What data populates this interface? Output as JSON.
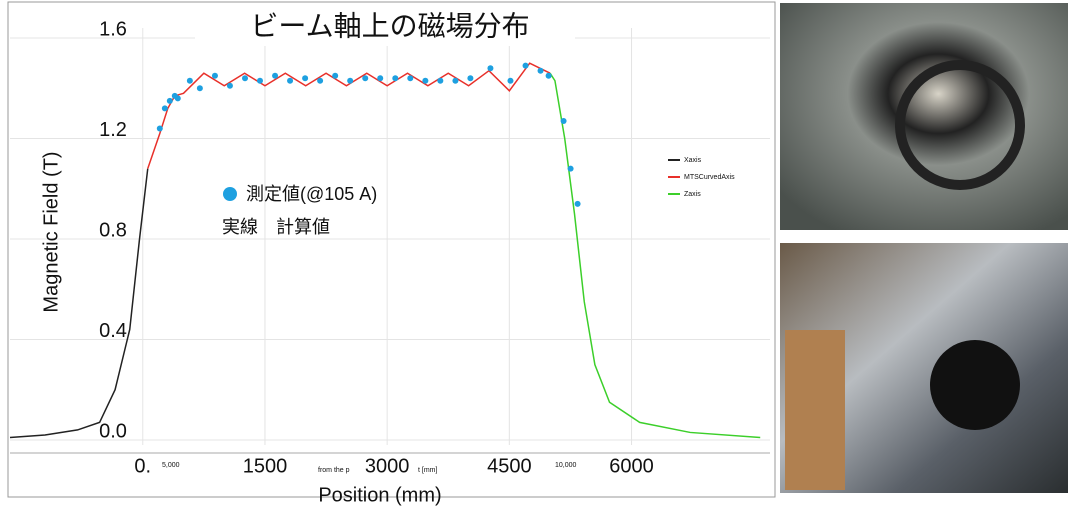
{
  "chart_data": {
    "type": "line",
    "title": "ビーム軸上の磁場分布",
    "x_label": "Position (mm)",
    "y_label": "Magnetic  Field (T)",
    "xlim": [
      -1630,
      7700
    ],
    "ylim": [
      -0.02,
      1.64
    ],
    "xticks": [
      {
        "value": 0,
        "label": "0."
      },
      1500,
      3000,
      4500,
      6000
    ],
    "yticks": [
      {
        "value": 0,
        "label": "0.0"
      },
      0.4,
      0.8,
      1.2,
      1.6
    ],
    "series": [
      {
        "name": "Xaxis",
        "color": "#222222",
        "x": [
          -1630,
          -1200,
          -800,
          -530,
          -340,
          -160,
          -40,
          61
        ],
        "values": [
          0.01,
          0.02,
          0.04,
          0.07,
          0.2,
          0.44,
          0.8,
          1.08
        ]
      },
      {
        "name": "MTSCurvedAxis",
        "color": "#e8302a",
        "x": [
          61,
          209,
          307,
          393,
          500,
          750,
          1000,
          1250,
          1500,
          1750,
          2000,
          2250,
          2500,
          2750,
          3000,
          3250,
          3500,
          3750,
          4000,
          4250,
          4500,
          4750,
          5000
        ],
        "values": [
          1.08,
          1.22,
          1.32,
          1.37,
          1.38,
          1.46,
          1.41,
          1.46,
          1.41,
          1.46,
          1.41,
          1.46,
          1.41,
          1.46,
          1.41,
          1.46,
          1.41,
          1.46,
          1.41,
          1.47,
          1.39,
          1.5,
          1.46
        ]
      },
      {
        "name": "Zaxis",
        "color": "#3ccf2a",
        "x": [
          5000,
          5060,
          5180,
          5300,
          5420,
          5550,
          5730,
          6100,
          6720,
          7580
        ],
        "values": [
          1.46,
          1.43,
          1.2,
          0.9,
          0.55,
          0.3,
          0.15,
          0.07,
          0.03,
          0.01
        ]
      }
    ],
    "measured": {
      "name": "測定値(@105 A)",
      "color": "#1ea0e0",
      "x": [
        209,
        271,
        332,
        393,
        430,
        578,
        701,
        886,
        1070,
        1255,
        1439,
        1624,
        1808,
        1993,
        2177,
        2362,
        2546,
        2731,
        2915,
        3100,
        3284,
        3469,
        3653,
        3838,
        4022,
        4268,
        4514,
        4699,
        4883,
        4982,
        5166,
        5252,
        5338
      ],
      "values": [
        1.24,
        1.32,
        1.35,
        1.37,
        1.36,
        1.43,
        1.4,
        1.45,
        1.41,
        1.44,
        1.43,
        1.45,
        1.43,
        1.44,
        1.43,
        1.45,
        1.43,
        1.44,
        1.44,
        1.44,
        1.44,
        1.43,
        1.43,
        1.43,
        1.44,
        1.48,
        1.43,
        1.49,
        1.47,
        1.45,
        1.27,
        1.08,
        0.94
      ]
    },
    "annotations": [
      "実線　計算値",
      "5,000",
      "10,000",
      "from the p",
      "t [mm]"
    ],
    "grid": true
  }
}
